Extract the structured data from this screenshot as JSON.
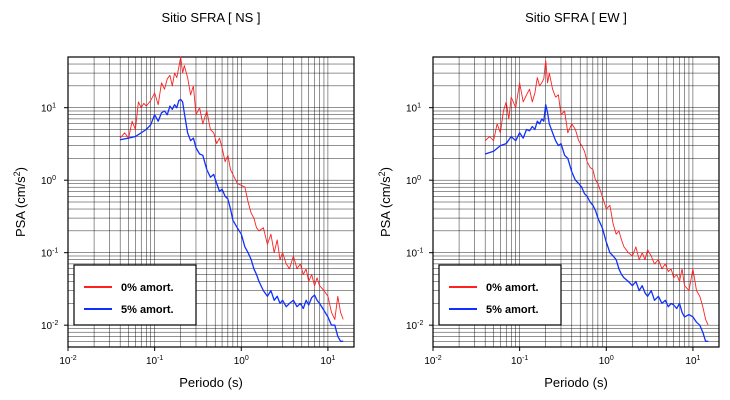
{
  "chart_data": [
    {
      "type": "line",
      "title": "Sitio SFRA [ NS ]",
      "xlabel": "Periodo (s)",
      "ylabel": "PSA (cm/s",
      "ylabel_sup": "2",
      "ylabel_end": ")",
      "xscale": "log",
      "yscale": "log",
      "xlim": [
        0.01,
        20
      ],
      "ylim": [
        0.005,
        50
      ],
      "xticks": [
        {
          "base": "10",
          "exp": "-2"
        },
        {
          "base": "10",
          "exp": "-1"
        },
        {
          "base": "10",
          "exp": "0"
        },
        {
          "base": "10",
          "exp": "1"
        }
      ],
      "yticks": [
        {
          "base": "10",
          "exp": "-2"
        },
        {
          "base": "10",
          "exp": "-1"
        },
        {
          "base": "10",
          "exp": "0"
        },
        {
          "base": "10",
          "exp": "1"
        }
      ],
      "grid": true,
      "legend_position": "bottom-left",
      "series": [
        {
          "name": "0% amort.",
          "color": "#ff2020",
          "x": [
            0.04,
            0.045,
            0.05,
            0.055,
            0.06,
            0.065,
            0.07,
            0.075,
            0.08,
            0.09,
            0.1,
            0.11,
            0.12,
            0.13,
            0.14,
            0.15,
            0.16,
            0.17,
            0.18,
            0.19,
            0.2,
            0.21,
            0.22,
            0.24,
            0.26,
            0.28,
            0.3,
            0.33,
            0.36,
            0.4,
            0.44,
            0.48,
            0.52,
            0.56,
            0.6,
            0.65,
            0.7,
            0.75,
            0.8,
            0.9,
            1.0,
            1.1,
            1.2,
            1.3,
            1.4,
            1.5,
            1.6,
            1.8,
            2.0,
            2.2,
            2.4,
            2.6,
            2.8,
            3.0,
            3.3,
            3.6,
            4.0,
            4.4,
            4.8,
            5.2,
            5.6,
            6.0,
            6.5,
            7.0,
            7.5,
            8.0,
            9.0,
            10.0,
            11.0,
            12.0,
            13.0,
            14.0,
            15.0
          ],
          "y": [
            3.8,
            4.5,
            3.8,
            6.5,
            5.0,
            12.0,
            10.0,
            11.5,
            10.5,
            12.5,
            16.0,
            11.0,
            22.0,
            18.0,
            25.0,
            28.0,
            20.0,
            30.0,
            26.0,
            36.0,
            50.0,
            30.0,
            38.0,
            26.0,
            15.0,
            20.0,
            8.0,
            10.0,
            6.0,
            9.0,
            5.0,
            4.5,
            3.2,
            3.8,
            2.8,
            1.8,
            2.2,
            1.4,
            1.2,
            0.9,
            0.85,
            0.8,
            0.5,
            0.35,
            0.3,
            0.22,
            0.2,
            0.22,
            0.13,
            0.18,
            0.1,
            0.15,
            0.08,
            0.1,
            0.07,
            0.06,
            0.09,
            0.06,
            0.07,
            0.05,
            0.06,
            0.04,
            0.05,
            0.035,
            0.045,
            0.035,
            0.03,
            0.025,
            0.015,
            0.012,
            0.025,
            0.015,
            0.012
          ]
        },
        {
          "name": "5% amort.",
          "color": "#1030ff",
          "x": [
            0.04,
            0.05,
            0.06,
            0.07,
            0.08,
            0.09,
            0.1,
            0.11,
            0.12,
            0.13,
            0.14,
            0.15,
            0.16,
            0.17,
            0.18,
            0.19,
            0.2,
            0.21,
            0.22,
            0.24,
            0.26,
            0.28,
            0.3,
            0.33,
            0.36,
            0.4,
            0.44,
            0.48,
            0.52,
            0.56,
            0.6,
            0.65,
            0.7,
            0.75,
            0.8,
            0.9,
            1.0,
            1.1,
            1.2,
            1.3,
            1.4,
            1.5,
            1.6,
            1.8,
            2.0,
            2.2,
            2.4,
            2.6,
            2.8,
            3.0,
            3.3,
            3.6,
            4.0,
            4.4,
            4.8,
            5.2,
            5.6,
            6.0,
            6.5,
            7.0,
            7.5,
            8.0,
            9.0,
            10.0,
            11.0,
            12.0,
            13.0,
            14.0,
            15.0
          ],
          "y": [
            3.6,
            3.8,
            4.0,
            4.5,
            5.0,
            5.8,
            8.0,
            6.5,
            8.5,
            9.0,
            8.0,
            10.5,
            9.5,
            11.0,
            10.0,
            12.5,
            13.0,
            12.0,
            8.5,
            4.5,
            3.5,
            3.8,
            2.8,
            2.3,
            2.2,
            1.4,
            1.1,
            1.2,
            0.9,
            0.7,
            0.75,
            0.6,
            0.55,
            0.4,
            0.28,
            0.22,
            0.18,
            0.12,
            0.1,
            0.08,
            0.06,
            0.05,
            0.04,
            0.03,
            0.025,
            0.03,
            0.022,
            0.025,
            0.02,
            0.022,
            0.018,
            0.02,
            0.022,
            0.018,
            0.02,
            0.017,
            0.022,
            0.019,
            0.024,
            0.026,
            0.022,
            0.02,
            0.016,
            0.013,
            0.01,
            0.01,
            0.007,
            0.006,
            0.006
          ]
        }
      ]
    },
    {
      "type": "line",
      "title": "Sitio SFRA [ EW ]",
      "xlabel": "Periodo (s)",
      "ylabel": "PSA (cm/s",
      "ylabel_sup": "2",
      "ylabel_end": ")",
      "xscale": "log",
      "yscale": "log",
      "xlim": [
        0.01,
        20
      ],
      "ylim": [
        0.005,
        50
      ],
      "xticks": [
        {
          "base": "10",
          "exp": "-2"
        },
        {
          "base": "10",
          "exp": "-1"
        },
        {
          "base": "10",
          "exp": "0"
        },
        {
          "base": "10",
          "exp": "1"
        }
      ],
      "yticks": [
        {
          "base": "10",
          "exp": "-2"
        },
        {
          "base": "10",
          "exp": "-1"
        },
        {
          "base": "10",
          "exp": "0"
        },
        {
          "base": "10",
          "exp": "1"
        }
      ],
      "grid": true,
      "legend_position": "bottom-left",
      "series": [
        {
          "name": "0% amort.",
          "color": "#ff2020",
          "x": [
            0.04,
            0.045,
            0.05,
            0.055,
            0.06,
            0.065,
            0.07,
            0.075,
            0.08,
            0.09,
            0.1,
            0.11,
            0.12,
            0.13,
            0.14,
            0.15,
            0.16,
            0.17,
            0.18,
            0.19,
            0.2,
            0.21,
            0.22,
            0.24,
            0.26,
            0.28,
            0.3,
            0.33,
            0.36,
            0.4,
            0.44,
            0.48,
            0.52,
            0.56,
            0.6,
            0.65,
            0.7,
            0.75,
            0.8,
            0.9,
            1.0,
            1.1,
            1.2,
            1.3,
            1.4,
            1.5,
            1.6,
            1.8,
            2.0,
            2.2,
            2.4,
            2.6,
            2.8,
            3.0,
            3.3,
            3.6,
            4.0,
            4.4,
            4.8,
            5.2,
            5.6,
            6.0,
            6.5,
            7.0,
            7.5,
            8.0,
            9.0,
            10.0,
            11.0,
            12.0,
            13.0,
            14.0,
            15.0
          ],
          "y": [
            3.5,
            4.0,
            3.5,
            6.0,
            4.5,
            9.0,
            12.0,
            7.0,
            14.0,
            10.0,
            22.0,
            12.0,
            15.0,
            18.0,
            12.0,
            16.0,
            26.0,
            20.0,
            22.0,
            25.0,
            45.0,
            22.0,
            30.0,
            18.0,
            14.0,
            15.0,
            8.0,
            9.0,
            4.5,
            6.0,
            5.0,
            3.5,
            3.0,
            2.5,
            1.8,
            1.5,
            1.4,
            1.0,
            0.9,
            0.6,
            0.4,
            0.45,
            0.25,
            0.18,
            0.2,
            0.15,
            0.12,
            0.1,
            0.09,
            0.12,
            0.08,
            0.1,
            0.08,
            0.11,
            0.09,
            0.07,
            0.08,
            0.06,
            0.07,
            0.055,
            0.06,
            0.045,
            0.05,
            0.04,
            0.06,
            0.035,
            0.03,
            0.06,
            0.03,
            0.025,
            0.018,
            0.012,
            0.01
          ]
        },
        {
          "name": "5% amort.",
          "color": "#1030ff",
          "x": [
            0.04,
            0.05,
            0.06,
            0.07,
            0.08,
            0.09,
            0.1,
            0.11,
            0.12,
            0.13,
            0.14,
            0.15,
            0.16,
            0.17,
            0.18,
            0.19,
            0.2,
            0.21,
            0.22,
            0.24,
            0.26,
            0.28,
            0.3,
            0.33,
            0.36,
            0.4,
            0.44,
            0.48,
            0.52,
            0.56,
            0.6,
            0.65,
            0.7,
            0.75,
            0.8,
            0.9,
            1.0,
            1.1,
            1.2,
            1.3,
            1.4,
            1.5,
            1.6,
            1.8,
            2.0,
            2.2,
            2.4,
            2.6,
            2.8,
            3.0,
            3.3,
            3.6,
            4.0,
            4.4,
            4.8,
            5.2,
            5.6,
            6.0,
            6.5,
            7.0,
            7.5,
            8.0,
            9.0,
            10.0,
            11.0,
            12.0,
            13.0,
            14.0,
            15.0
          ],
          "y": [
            2.3,
            2.5,
            3.0,
            3.2,
            4.0,
            3.5,
            4.5,
            3.8,
            5.0,
            4.8,
            5.5,
            5.0,
            6.5,
            6.0,
            7.0,
            6.5,
            11.0,
            8.5,
            6.0,
            4.5,
            3.5,
            3.0,
            3.2,
            2.2,
            2.0,
            1.3,
            1.0,
            0.9,
            0.8,
            0.65,
            0.6,
            0.5,
            0.45,
            0.38,
            0.3,
            0.22,
            0.14,
            0.1,
            0.09,
            0.08,
            0.06,
            0.05,
            0.045,
            0.04,
            0.035,
            0.04,
            0.03,
            0.035,
            0.028,
            0.025,
            0.03,
            0.022,
            0.025,
            0.02,
            0.022,
            0.018,
            0.02,
            0.019,
            0.017,
            0.02,
            0.015,
            0.013,
            0.014,
            0.013,
            0.011,
            0.01,
            0.008,
            0.006,
            0.006
          ]
        }
      ]
    }
  ]
}
